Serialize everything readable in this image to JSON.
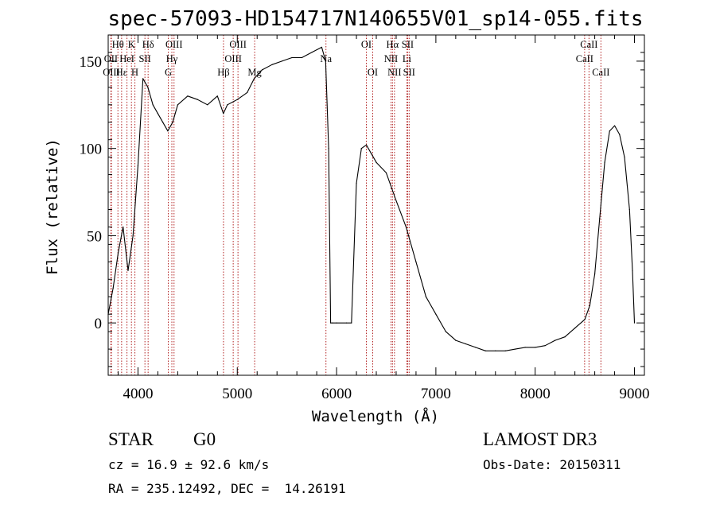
{
  "chart_data": {
    "type": "line",
    "title": "spec-57093-HD154717N140655V01_sp14-055.fits",
    "xlabel": "Wavelength (Å)",
    "ylabel": "Flux (relative)",
    "xlim": [
      3700,
      9100
    ],
    "ylim": [
      -30,
      165
    ],
    "xticks": [
      4000,
      5000,
      6000,
      7000,
      8000,
      9000
    ],
    "yticks": [
      0,
      50,
      100,
      150
    ],
    "grid": false,
    "legend": "none",
    "series": [
      {
        "color": "#000000",
        "x": [
          3700,
          3750,
          3800,
          3850,
          3900,
          3950,
          4000,
          4050,
          4100,
          4150,
          4200,
          4250,
          4300,
          4350,
          4400,
          4500,
          4600,
          4700,
          4800,
          4860,
          4900,
          5000,
          5100,
          5170,
          5250,
          5350,
          5450,
          5550,
          5650,
          5750,
          5850,
          5890,
          5920,
          5940,
          5960,
          6000,
          6100,
          6150,
          6200,
          6250,
          6300,
          6350,
          6400,
          6500,
          6600,
          6700,
          6800,
          6900,
          7000,
          7100,
          7200,
          7300,
          7400,
          7500,
          7600,
          7700,
          7800,
          7900,
          8000,
          8100,
          8200,
          8300,
          8400,
          8500,
          8550,
          8600,
          8650,
          8700,
          8750,
          8800,
          8850,
          8900,
          8950,
          8980,
          9000
        ],
        "y": [
          5,
          20,
          40,
          55,
          30,
          50,
          90,
          140,
          135,
          125,
          120,
          115,
          110,
          115,
          125,
          130,
          128,
          125,
          130,
          120,
          125,
          128,
          132,
          140,
          145,
          148,
          150,
          152,
          152,
          155,
          158,
          150,
          100,
          0,
          0,
          0,
          0,
          0,
          80,
          100,
          102,
          97,
          92,
          86,
          70,
          55,
          35,
          15,
          5,
          -5,
          -10,
          -12,
          -14,
          -16,
          -16,
          -16,
          -15,
          -14,
          -14,
          -13,
          -10,
          -8,
          -3,
          2,
          10,
          28,
          60,
          92,
          110,
          113,
          108,
          95,
          65,
          30,
          0
        ]
      }
    ],
    "line_marks": [
      {
        "label": "Hθ",
        "x": 3798,
        "row": 1
      },
      {
        "label": "OII",
        "x": 3727,
        "row": 2
      },
      {
        "label": "OIII",
        "x": 3732,
        "row": 3
      },
      {
        "label": "Hε",
        "x": 3835,
        "row": 3
      },
      {
        "label": "K",
        "x": 3934,
        "row": 1
      },
      {
        "label": "HeI",
        "x": 3889,
        "row": 2
      },
      {
        "label": "SII",
        "x": 4070,
        "row": 2
      },
      {
        "label": "H",
        "x": 3969,
        "row": 3
      },
      {
        "label": "Hδ",
        "x": 4102,
        "row": 1
      },
      {
        "label": "OIII",
        "x": 4363,
        "row": 1
      },
      {
        "label": "Hγ",
        "x": 4341,
        "row": 2
      },
      {
        "label": "G",
        "x": 4305,
        "row": 3
      },
      {
        "label": "OIII",
        "x": 5007,
        "row": 1
      },
      {
        "label": "OIII",
        "x": 4959,
        "row": 2
      },
      {
        "label": "Hβ",
        "x": 4861,
        "row": 3
      },
      {
        "label": "Mg",
        "x": 5175,
        "row": 3
      },
      {
        "label": "Na",
        "x": 5893,
        "row": 2
      },
      {
        "label": "OI",
        "x": 6300,
        "row": 1
      },
      {
        "label": "OI",
        "x": 6364,
        "row": 3
      },
      {
        "label": "Hα",
        "x": 6563,
        "row": 1
      },
      {
        "label": "SII",
        "x": 6716,
        "row": 1
      },
      {
        "label": "NII",
        "x": 6548,
        "row": 2
      },
      {
        "label": "Li",
        "x": 6708,
        "row": 2
      },
      {
        "label": "NII",
        "x": 6583,
        "row": 3
      },
      {
        "label": "SII",
        "x": 6731,
        "row": 3
      },
      {
        "label": "CaII",
        "x": 8542,
        "row": 1
      },
      {
        "label": "CaII",
        "x": 8498,
        "row": 2
      },
      {
        "label": "CaII",
        "x": 8662,
        "row": 3
      }
    ]
  },
  "info": {
    "class_label": "STAR",
    "subclass_label": "G0",
    "survey": "LAMOST DR3",
    "cz": "cz = 16.9 ± 92.6 km/s",
    "obs_date": "Obs-Date: 20150311",
    "coords": "RA = 235.12492, DEC =  14.26191"
  },
  "colors": {
    "spectrum": "#000000",
    "line_marker": "#b22222",
    "background": "#ffffff"
  }
}
